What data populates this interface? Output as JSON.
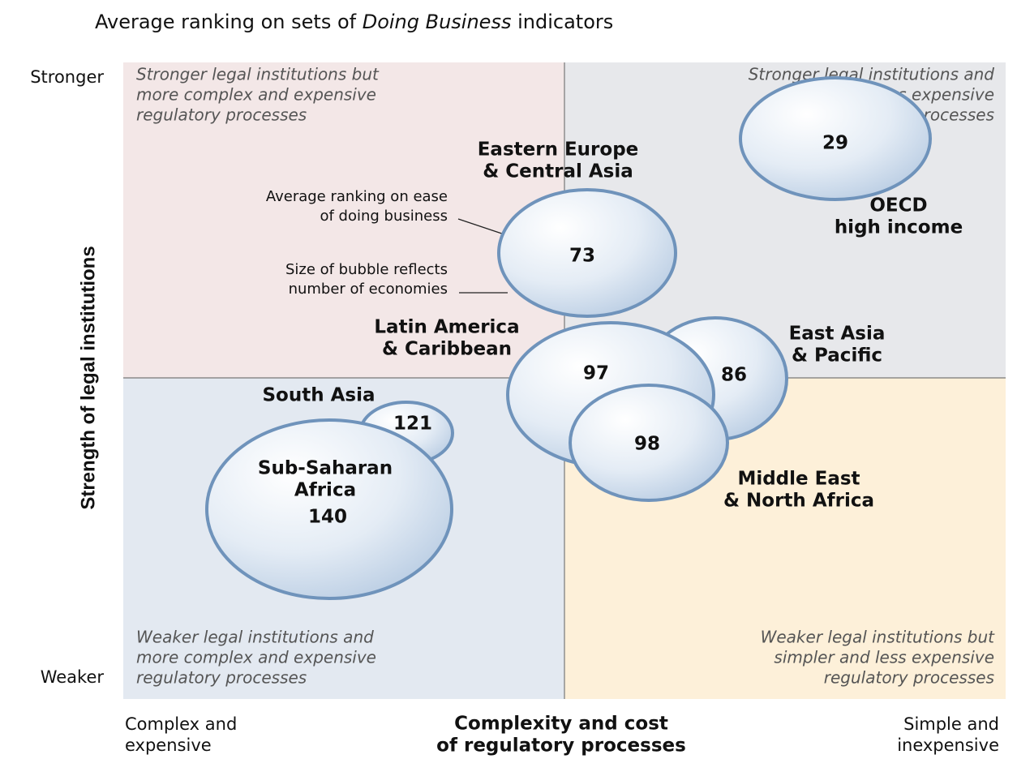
{
  "chart_data": {
    "type": "bubble",
    "title": [
      "Average ranking on sets of ",
      "Doing Business",
      " indicators"
    ],
    "y_label": "Strength of legal institutions",
    "y_ends": [
      "Stronger",
      "Weaker"
    ],
    "x_label": [
      "Complexity and cost",
      "of regulatory processes"
    ],
    "x_ends": [
      [
        "Complex and",
        "expensive"
      ],
      [
        "Simple and",
        "inexpensive"
      ]
    ],
    "quadrants": [
      [
        "Stronger legal institutions but",
        "more complex and expensive",
        "regulatory processes"
      ],
      [
        "Stronger legal institutions and",
        "simpler and less expensive",
        "regulatory processes"
      ],
      [
        "Weaker legal institutions and",
        "more complex and expensive",
        "regulatory processes"
      ],
      [
        "Weaker legal institutions but",
        "simpler and less expensive",
        "regulatory processes"
      ]
    ],
    "annotations": [
      [
        "Average ranking on ease",
        "of doing business"
      ],
      [
        "Size of bubble reflects",
        "number of economies"
      ]
    ],
    "series": [
      {
        "name": [
          "OECD",
          "high income"
        ],
        "values": [
          29
        ]
      },
      {
        "name": [
          "Eastern Europe",
          "& Central Asia"
        ],
        "values": [
          73
        ]
      },
      {
        "name": [
          "South Asia"
        ],
        "values": [
          121
        ]
      },
      {
        "name": [
          "Sub-Saharan",
          "Africa"
        ],
        "values": [
          140
        ]
      },
      {
        "name": [
          "East Asia",
          "& Pacific"
        ],
        "values": [
          86
        ]
      },
      {
        "name": [
          "Latin America",
          "& Caribbean"
        ],
        "values": [
          97
        ]
      },
      {
        "name": [
          "Middle East",
          "& North Africa"
        ],
        "values": [
          98
        ]
      }
    ],
    "color": "#6f93bb"
  }
}
